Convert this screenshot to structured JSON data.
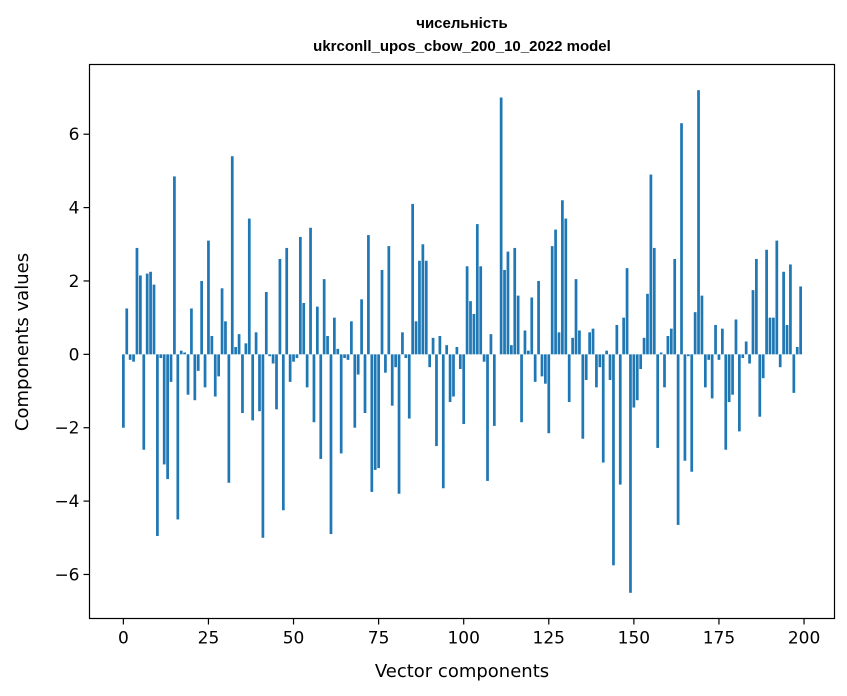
{
  "chart_data": {
    "type": "bar",
    "title_lines": [
      "чисельність",
      "ukrconll_upos_cbow_200_10_2022 model"
    ],
    "xlabel": "Vector components",
    "ylabel": "Components values",
    "xlim": [
      -9.95,
      208.95
    ],
    "ylim": [
      -7.2,
      7.9
    ],
    "xticks": [
      0,
      25,
      50,
      75,
      100,
      125,
      150,
      175,
      200
    ],
    "xtick_labels": [
      "0",
      "25",
      "50",
      "75",
      "100",
      "125",
      "150",
      "175",
      "200"
    ],
    "yticks": [
      -6,
      -4,
      -2,
      0,
      2,
      4,
      6
    ],
    "ytick_labels": [
      "−6",
      "−4",
      "−2",
      "0",
      "2",
      "4",
      "6"
    ],
    "bar_color": "#1f77b4",
    "grid": false,
    "x": [
      0,
      1,
      2,
      3,
      4,
      5,
      6,
      7,
      8,
      9,
      10,
      11,
      12,
      13,
      14,
      15,
      16,
      17,
      18,
      19,
      20,
      21,
      22,
      23,
      24,
      25,
      26,
      27,
      28,
      29,
      30,
      31,
      32,
      33,
      34,
      35,
      36,
      37,
      38,
      39,
      40,
      41,
      42,
      43,
      44,
      45,
      46,
      47,
      48,
      49,
      50,
      51,
      52,
      53,
      54,
      55,
      56,
      57,
      58,
      59,
      60,
      61,
      62,
      63,
      64,
      65,
      66,
      67,
      68,
      69,
      70,
      71,
      72,
      73,
      74,
      75,
      76,
      77,
      78,
      79,
      80,
      81,
      82,
      83,
      84,
      85,
      86,
      87,
      88,
      89,
      90,
      91,
      92,
      93,
      94,
      95,
      96,
      97,
      98,
      99,
      100,
      101,
      102,
      103,
      104,
      105,
      106,
      107,
      108,
      109,
      110,
      111,
      112,
      113,
      114,
      115,
      116,
      117,
      118,
      119,
      120,
      121,
      122,
      123,
      124,
      125,
      126,
      127,
      128,
      129,
      130,
      131,
      132,
      133,
      134,
      135,
      136,
      137,
      138,
      139,
      140,
      141,
      142,
      143,
      144,
      145,
      146,
      147,
      148,
      149,
      150,
      151,
      152,
      153,
      154,
      155,
      156,
      157,
      158,
      159,
      160,
      161,
      162,
      163,
      164,
      165,
      166,
      167,
      168,
      169,
      170,
      171,
      172,
      173,
      174,
      175,
      176,
      177,
      178,
      179,
      180,
      181,
      182,
      183,
      184,
      185,
      186,
      187,
      188,
      189,
      190,
      191,
      192,
      193,
      194,
      195,
      196,
      197,
      198,
      199
    ],
    "values": [
      -2.0,
      1.25,
      -0.15,
      -0.2,
      2.9,
      2.15,
      -2.6,
      2.2,
      2.25,
      1.9,
      -4.95,
      -0.1,
      -3.0,
      -3.4,
      -0.75,
      4.85,
      -4.5,
      0.1,
      0.05,
      -1.1,
      1.25,
      -1.25,
      -0.45,
      2.0,
      -0.9,
      3.1,
      0.5,
      -1.15,
      -0.6,
      1.8,
      0.9,
      -3.5,
      5.4,
      0.2,
      0.55,
      -1.6,
      0.3,
      3.7,
      -1.8,
      0.6,
      -1.55,
      -5.0,
      1.7,
      -0.05,
      -0.25,
      -1.5,
      2.6,
      -4.25,
      2.9,
      -0.75,
      -0.2,
      -0.1,
      3.2,
      1.4,
      -0.9,
      3.45,
      -1.85,
      1.3,
      -2.85,
      2.05,
      0.5,
      -4.9,
      1.0,
      0.15,
      -2.7,
      -0.1,
      -0.15,
      0.9,
      -2.0,
      -0.55,
      1.5,
      -1.6,
      3.25,
      -3.75,
      -3.15,
      -3.1,
      2.3,
      -0.5,
      2.95,
      -1.4,
      -0.35,
      -3.8,
      0.6,
      -0.1,
      -1.75,
      4.1,
      0.9,
      2.55,
      3.0,
      2.55,
      -0.35,
      0.45,
      -2.5,
      0.5,
      -3.65,
      0.25,
      -1.3,
      -1.15,
      0.2,
      -0.4,
      -1.9,
      2.4,
      1.45,
      1.1,
      3.55,
      2.4,
      -0.2,
      -3.45,
      0.55,
      -1.95,
      0.0,
      7.0,
      2.3,
      2.8,
      0.25,
      2.9,
      1.6,
      -1.85,
      0.65,
      0.1,
      1.55,
      -0.75,
      2.0,
      -0.6,
      -0.8,
      -2.15,
      2.95,
      3.4,
      0.6,
      4.2,
      3.7,
      -1.3,
      0.45,
      2.05,
      0.65,
      -2.3,
      -0.7,
      0.6,
      0.7,
      -0.9,
      -0.35,
      -2.95,
      0.1,
      -0.7,
      -5.75,
      0.8,
      -3.55,
      1.0,
      2.35,
      -6.5,
      -1.45,
      -1.25,
      -0.4,
      0.45,
      1.65,
      4.9,
      2.9,
      -2.55,
      0.05,
      -0.9,
      0.5,
      0.7,
      2.6,
      -4.65,
      6.3,
      -2.9,
      -0.05,
      -3.2,
      1.15,
      7.2,
      1.6,
      -0.9,
      -0.15,
      -1.2,
      0.8,
      -0.15,
      0.7,
      -2.6,
      -1.3,
      -1.1,
      0.95,
      -2.1,
      -0.1,
      0.35,
      -0.25,
      1.75,
      2.6,
      -1.7,
      -0.65,
      2.85,
      1.0,
      1.0,
      3.1,
      -0.35,
      2.25,
      0.8,
      2.45,
      -1.05,
      0.2,
      1.85
    ]
  }
}
